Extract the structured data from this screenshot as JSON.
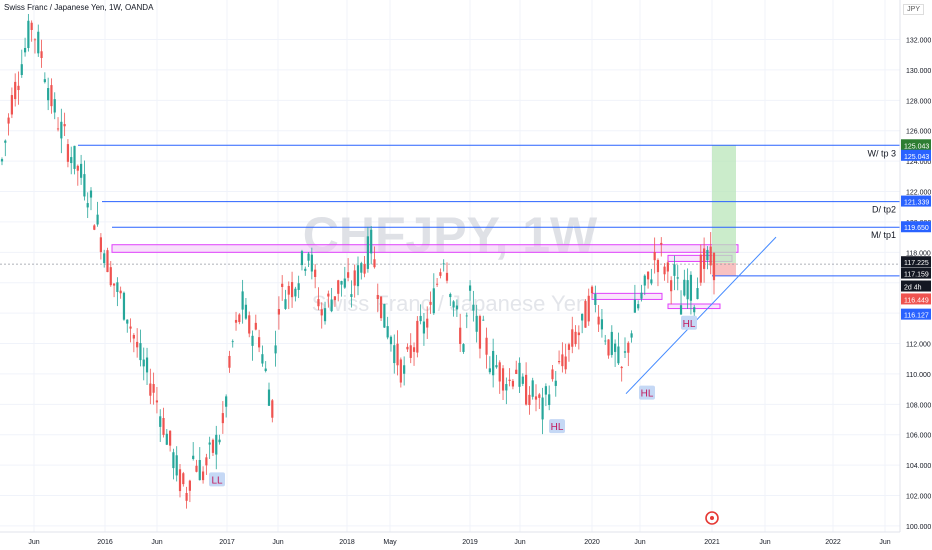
{
  "header": {
    "title": "Swiss Franc / Japanese Yen, 1W, OANDA",
    "currency_button": "JPY"
  },
  "watermark": {
    "symbol": "CHFJPY, 1W",
    "name": "Swiss Franc / Japanese Yen"
  },
  "colors": {
    "up": "#26a69a",
    "down": "#ef5350",
    "blue_line": "#2962ff",
    "pink_zone": "#e040fb",
    "target_green": "#b9e6b9",
    "stop_red": "#f7b6b6"
  },
  "chart_data": {
    "type": "candlestick",
    "symbol": "CHFJPY",
    "timeframe": "1W",
    "ylim": [
      99.6,
      134.6
    ],
    "y_ticks": [
      100,
      102,
      104,
      106,
      108,
      110,
      112,
      114,
      116,
      118,
      120,
      122,
      124,
      126,
      128,
      130,
      132
    ],
    "y_tick_labels": [
      "100.000",
      "102.000",
      "104.000",
      "106.000",
      "108.000",
      "110.000",
      "112.000",
      "114.000",
      "116.000",
      "118.000",
      "120.000",
      "122.000",
      "124.000",
      "126.000",
      "128.000",
      "130.000",
      "132.000"
    ],
    "x_labels": [
      "Jun",
      "2016",
      "Jun",
      "2017",
      "Jun",
      "2018",
      "May",
      "2019",
      "Jun",
      "2020",
      "Jun",
      "2021",
      "Jun",
      "2022",
      "Jun"
    ],
    "price_path": [
      [
        0,
        124
      ],
      [
        3,
        128
      ],
      [
        6,
        130.5
      ],
      [
        9,
        133
      ],
      [
        12,
        131
      ],
      [
        15,
        128
      ],
      [
        18,
        126
      ],
      [
        22,
        124
      ],
      [
        26,
        122
      ],
      [
        30,
        119
      ],
      [
        34,
        116
      ],
      [
        38,
        114
      ],
      [
        42,
        111
      ],
      [
        46,
        109
      ],
      [
        50,
        106
      ],
      [
        54,
        103
      ],
      [
        56,
        102.2
      ],
      [
        58,
        104.5
      ],
      [
        61,
        103.5
      ],
      [
        64,
        105
      ],
      [
        67,
        106.5
      ],
      [
        70,
        112
      ],
      [
        73,
        114.5
      ],
      [
        75,
        113
      ],
      [
        78,
        112.5
      ],
      [
        80,
        110
      ],
      [
        82,
        108
      ],
      [
        84,
        115
      ],
      [
        87,
        115.5
      ],
      [
        90,
        116.5
      ],
      [
        93,
        118.3
      ],
      [
        95,
        116
      ],
      [
        97,
        114
      ],
      [
        100,
        115
      ],
      [
        103,
        116
      ],
      [
        106,
        115.5
      ],
      [
        109,
        117
      ],
      [
        112,
        118.5
      ],
      [
        114,
        116
      ],
      [
        116,
        113.5
      ],
      [
        118,
        112.5
      ],
      [
        120,
        111
      ],
      [
        122,
        110
      ],
      [
        124,
        111.5
      ],
      [
        126,
        112.5
      ],
      [
        128,
        113
      ],
      [
        130,
        114
      ],
      [
        132,
        116
      ],
      [
        134,
        118
      ],
      [
        136,
        116
      ],
      [
        138,
        113.5
      ],
      [
        140,
        112
      ],
      [
        142,
        115
      ],
      [
        144,
        113
      ],
      [
        146,
        112.5
      ],
      [
        148,
        111
      ],
      [
        150,
        110.5
      ],
      [
        152,
        110
      ],
      [
        154,
        109.5
      ],
      [
        156,
        110.5
      ],
      [
        158,
        109
      ],
      [
        160,
        108.8
      ],
      [
        162,
        108.5
      ],
      [
        164,
        107.5
      ],
      [
        166,
        109
      ],
      [
        168,
        110
      ],
      [
        170,
        110.5
      ],
      [
        172,
        111.5
      ],
      [
        174,
        112.5
      ],
      [
        176,
        113
      ],
      [
        178,
        114.5
      ],
      [
        180,
        115
      ],
      [
        182,
        113.5
      ],
      [
        184,
        112
      ],
      [
        186,
        111.5
      ],
      [
        188,
        110
      ],
      [
        190,
        112
      ],
      [
        192,
        114
      ],
      [
        194,
        115
      ],
      [
        196,
        116
      ],
      [
        198,
        117.5
      ],
      [
        200,
        117.8
      ],
      [
        202,
        116.5
      ],
      [
        204,
        116.5
      ],
      [
        206,
        114.5
      ],
      [
        208,
        116
      ],
      [
        210,
        115
      ],
      [
        212,
        117
      ],
      [
        214,
        117.4
      ],
      [
        216,
        117.2
      ]
    ],
    "candles": [
      {
        "o": 124.2,
        "h": 125.2,
        "l": 122.8,
        "c": 123.4
      },
      {
        "o": 123.6,
        "h": 126.4,
        "l": 123.1,
        "c": 125.9
      },
      {
        "o": 125.8,
        "h": 128.6,
        "l": 125.0,
        "c": 128.2
      },
      {
        "o": 128.3,
        "h": 129.9,
        "l": 127.0,
        "c": 127.6
      },
      {
        "o": 127.5,
        "h": 130.7,
        "l": 126.9,
        "c": 130.2
      },
      {
        "o": 130.4,
        "h": 132.1,
        "l": 129.6,
        "c": 131.3
      },
      {
        "o": 131.0,
        "h": 132.0,
        "l": 129.9,
        "c": 130.6
      },
      {
        "o": 130.4,
        "h": 133.2,
        "l": 130.0,
        "c": 132.8
      },
      {
        "o": 132.9,
        "h": 133.8,
        "l": 131.0,
        "c": 131.6
      },
      {
        "o": 131.4,
        "h": 132.5,
        "l": 130.3,
        "c": 130.9
      },
      {
        "o": 131.0,
        "h": 131.9,
        "l": 129.5,
        "c": 130.0
      },
      {
        "o": 130.1,
        "h": 131.0,
        "l": 127.6,
        "c": 128.1
      },
      {
        "o": 127.9,
        "h": 128.5,
        "l": 126.9,
        "c": 127.3
      },
      {
        "o": 127.2,
        "h": 128.9,
        "l": 126.4,
        "c": 128.4
      },
      {
        "o": 128.5,
        "h": 129.2,
        "l": 126.0,
        "c": 126.4
      },
      {
        "o": 126.2,
        "h": 126.9,
        "l": 125.1,
        "c": 125.6
      },
      {
        "o": 125.4,
        "h": 126.9,
        "l": 124.9,
        "c": 126.3
      },
      {
        "o": 126.2,
        "h": 126.6,
        "l": 124.0,
        "c": 124.5
      },
      {
        "o": 124.4,
        "h": 125.4,
        "l": 123.2,
        "c": 123.6
      },
      {
        "o": 123.5,
        "h": 124.8,
        "l": 122.7,
        "c": 124.2
      },
      {
        "o": 124.0,
        "h": 124.4,
        "l": 121.7,
        "c": 122.1
      },
      {
        "o": 122.0,
        "h": 123.3,
        "l": 121.4,
        "c": 122.8
      },
      {
        "o": 122.7,
        "h": 123.1,
        "l": 119.9,
        "c": 120.3
      },
      {
        "o": 120.2,
        "h": 121.2,
        "l": 118.8,
        "c": 119.2
      },
      {
        "o": 119.3,
        "h": 120.2,
        "l": 117.2,
        "c": 117.6
      },
      {
        "o": 117.5,
        "h": 118.7,
        "l": 116.5,
        "c": 118.2
      },
      {
        "o": 118.0,
        "h": 118.5,
        "l": 115.6,
        "c": 116.0
      },
      {
        "o": 115.9,
        "h": 116.6,
        "l": 114.2,
        "c": 114.6
      },
      {
        "o": 114.5,
        "h": 115.9,
        "l": 113.6,
        "c": 115.4
      },
      {
        "o": 115.2,
        "h": 115.7,
        "l": 112.9,
        "c": 113.3
      },
      {
        "o": 113.1,
        "h": 113.7,
        "l": 111.2,
        "c": 111.6
      },
      {
        "o": 111.5,
        "h": 112.5,
        "l": 110.1,
        "c": 110.5
      },
      {
        "o": 110.4,
        "h": 111.4,
        "l": 109.6,
        "c": 110.9
      },
      {
        "o": 110.8,
        "h": 111.2,
        "l": 108.2,
        "c": 108.6
      },
      {
        "o": 108.4,
        "h": 109.1,
        "l": 106.6,
        "c": 107.0
      },
      {
        "o": 106.9,
        "h": 107.8,
        "l": 105.0,
        "c": 105.4
      },
      {
        "o": 105.3,
        "h": 106.1,
        "l": 103.7,
        "c": 104.1
      },
      {
        "o": 104.0,
        "h": 104.6,
        "l": 102.2,
        "c": 102.6
      },
      {
        "o": 102.5,
        "h": 104.2,
        "l": 102.0,
        "c": 103.7
      },
      {
        "o": 103.8,
        "h": 105.0,
        "l": 103.0,
        "c": 104.6
      },
      {
        "o": 104.5,
        "h": 105.1,
        "l": 103.0,
        "c": 103.4
      },
      {
        "o": 103.3,
        "h": 104.4,
        "l": 102.9,
        "c": 104.0
      },
      {
        "o": 104.1,
        "h": 105.6,
        "l": 103.6,
        "c": 105.2
      },
      {
        "o": 105.0,
        "h": 105.6,
        "l": 104.1,
        "c": 104.5
      },
      {
        "o": 104.6,
        "h": 106.5,
        "l": 104.3,
        "c": 106.1
      },
      {
        "o": 106.2,
        "h": 109.1,
        "l": 105.8,
        "c": 108.7
      },
      {
        "o": 108.8,
        "h": 111.7,
        "l": 108.4,
        "c": 111.2
      },
      {
        "o": 111.3,
        "h": 113.8,
        "l": 110.9,
        "c": 113.4
      },
      {
        "o": 113.2,
        "h": 114.9,
        "l": 112.5,
        "c": 114.4
      },
      {
        "o": 114.3,
        "h": 114.8,
        "l": 112.4,
        "c": 112.9
      },
      {
        "o": 113.0,
        "h": 114.3,
        "l": 112.1,
        "c": 113.7
      },
      {
        "o": 113.6,
        "h": 114.2,
        "l": 111.8,
        "c": 112.2
      },
      {
        "o": 112.1,
        "h": 112.7,
        "l": 110.1,
        "c": 110.5
      },
      {
        "o": 110.4,
        "h": 111.0,
        "l": 107.9,
        "c": 108.3
      },
      {
        "o": 108.5,
        "h": 111.2,
        "l": 108.0,
        "c": 110.8
      },
      {
        "o": 110.9,
        "h": 114.2,
        "l": 110.5,
        "c": 113.8
      },
      {
        "o": 113.9,
        "h": 115.4,
        "l": 113.3,
        "c": 114.9
      },
      {
        "o": 114.8,
        "h": 115.9,
        "l": 114.1,
        "c": 115.4
      },
      {
        "o": 115.5,
        "h": 117.2,
        "l": 115.0,
        "c": 116.7
      },
      {
        "o": 116.8,
        "h": 118.7,
        "l": 116.3,
        "c": 118.2
      },
      {
        "o": 118.0,
        "h": 118.5,
        "l": 116.3,
        "c": 116.7
      },
      {
        "o": 116.6,
        "h": 117.1,
        "l": 114.6,
        "c": 115.0
      },
      {
        "o": 114.9,
        "h": 116.2,
        "l": 114.1,
        "c": 115.7
      },
      {
        "o": 115.6,
        "h": 116.1,
        "l": 113.7,
        "c": 114.1
      },
      {
        "o": 114.2,
        "h": 115.6,
        "l": 113.8,
        "c": 115.2
      },
      {
        "o": 115.3,
        "h": 117.0,
        "l": 114.9,
        "c": 116.6
      },
      {
        "o": 116.5,
        "h": 117.0,
        "l": 115.0,
        "c": 115.4
      },
      {
        "o": 115.5,
        "h": 117.2,
        "l": 115.1,
        "c": 116.8
      },
      {
        "o": 116.9,
        "h": 118.9,
        "l": 116.4,
        "c": 118.4
      },
      {
        "o": 118.3,
        "h": 118.8,
        "l": 116.1,
        "c": 116.5
      },
      {
        "o": 116.4,
        "h": 116.9,
        "l": 113.6,
        "c": 114.0
      },
      {
        "o": 113.8,
        "h": 114.6,
        "l": 112.0,
        "c": 112.4
      },
      {
        "o": 112.3,
        "h": 113.7,
        "l": 111.6,
        "c": 113.2
      },
      {
        "o": 113.1,
        "h": 113.5,
        "l": 110.6,
        "c": 111.0
      },
      {
        "o": 110.9,
        "h": 111.4,
        "l": 109.6,
        "c": 110.0
      },
      {
        "o": 110.1,
        "h": 111.9,
        "l": 109.7,
        "c": 111.5
      },
      {
        "o": 111.4,
        "h": 113.0,
        "l": 110.9,
        "c": 112.5
      },
      {
        "o": 112.6,
        "h": 114.0,
        "l": 112.2,
        "c": 113.6
      },
      {
        "o": 113.5,
        "h": 114.9,
        "l": 113.0,
        "c": 114.4
      },
      {
        "o": 114.5,
        "h": 116.6,
        "l": 114.0,
        "c": 116.1
      },
      {
        "o": 116.2,
        "h": 118.6,
        "l": 115.8,
        "c": 118.1
      },
      {
        "o": 117.9,
        "h": 118.4,
        "l": 115.5,
        "c": 115.9
      },
      {
        "o": 115.8,
        "h": 116.3,
        "l": 112.9,
        "c": 113.3
      },
      {
        "o": 113.2,
        "h": 114.0,
        "l": 111.6,
        "c": 112.0
      },
      {
        "o": 112.1,
        "h": 115.9,
        "l": 105.6,
        "c": 115.4
      },
      {
        "o": 115.2,
        "h": 115.8,
        "l": 112.5,
        "c": 112.9
      },
      {
        "o": 112.8,
        "h": 113.6,
        "l": 112.1,
        "c": 112.6
      },
      {
        "o": 112.5,
        "h": 113.1,
        "l": 110.6,
        "c": 111.0
      },
      {
        "o": 110.9,
        "h": 111.7,
        "l": 110.1,
        "c": 110.5
      },
      {
        "o": 110.6,
        "h": 111.9,
        "l": 109.8,
        "c": 111.4
      }
    ],
    "horizontal_levels": [
      {
        "label": "W/ tp 3",
        "price": 125.043,
        "axis_label": "125.043"
      },
      {
        "label": "D/ tp2",
        "price": 121.339,
        "axis_label": "121.339"
      },
      {
        "label": "M/ tp1",
        "price": 119.65,
        "axis_label": "119.650"
      },
      {
        "label": "",
        "price": 116.449,
        "axis_label": "116.449"
      }
    ],
    "price_labels": [
      {
        "text": "125.043",
        "price": 125.043,
        "color": "#2e7d32"
      },
      {
        "text": "125.043",
        "price": 124.35,
        "color": "#2962ff"
      },
      {
        "text": "121.339",
        "price": 121.339,
        "color": "#2962ff"
      },
      {
        "text": "119.650",
        "price": 119.65,
        "color": "#2962ff"
      },
      {
        "text": "117.225",
        "price": 117.35,
        "color": "#131722"
      },
      {
        "text": "117.159",
        "price": 116.6,
        "color": "#131722"
      },
      {
        "text": "2d 4h",
        "price": 115.75,
        "color": "#131722"
      },
      {
        "text": "116.449",
        "price": 114.9,
        "color": "#ef5350"
      },
      {
        "text": "116.127",
        "price": 113.9,
        "color": "#2962ff"
      }
    ],
    "zones": [
      {
        "name": "resistance-zone",
        "from": 118.0,
        "to": 118.5
      },
      {
        "name": "mini-zone-right",
        "from": 117.4,
        "to": 117.8
      },
      {
        "name": "support-zone",
        "from": 114.9,
        "to": 115.3
      },
      {
        "name": "support-zone-small",
        "from": 114.3,
        "to": 114.6
      }
    ],
    "annotations": [
      {
        "text": "LL",
        "price": 103.0
      },
      {
        "text": "HL",
        "price": 106.5
      },
      {
        "text": "HL",
        "price": 108.7
      },
      {
        "text": "HL",
        "price": 113.3
      }
    ],
    "trendline": {
      "from": 108.7,
      "to": 119.0
    },
    "target_box": {
      "from": 117.3,
      "to": 125.043
    },
    "stop_box": {
      "from": 116.449,
      "to": 117.3
    },
    "last_price": 117.225
  }
}
